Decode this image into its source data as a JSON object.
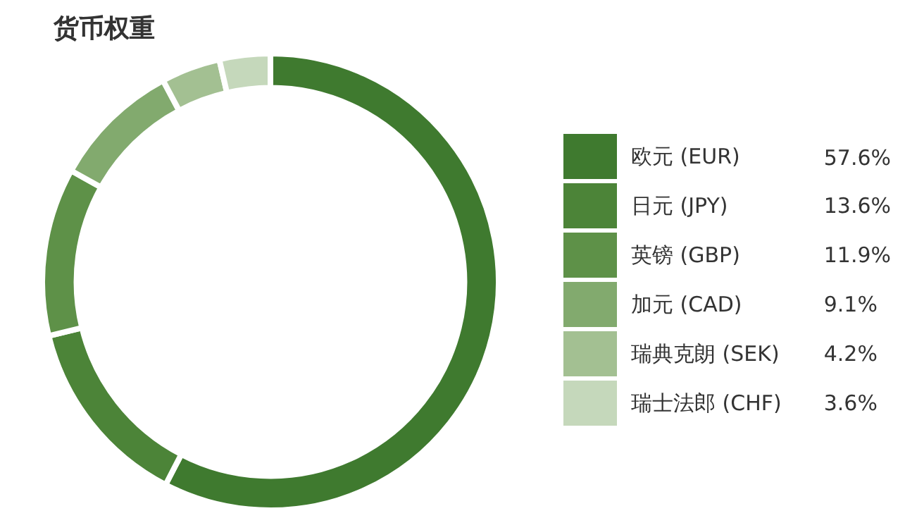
{
  "chart_data": {
    "type": "donut",
    "title": "货币权重",
    "categories": [
      "欧元 (EUR)",
      "日元 (JPY)",
      "英镑 (GBP)",
      "加元 (CAD)",
      "瑞典克朗 (SEK)",
      "瑞士法郎 (CHF)"
    ],
    "values": [
      57.6,
      13.6,
      11.9,
      9.1,
      4.2,
      3.6
    ],
    "value_labels": [
      "57.6%",
      "13.6%",
      "11.9%",
      "9.1%",
      "4.2%",
      "3.6%"
    ],
    "colors": [
      "#3f7a2f",
      "#4c8438",
      "#5e9148",
      "#82aa6e",
      "#a3c092",
      "#c5d8bb"
    ],
    "legend": "right"
  }
}
